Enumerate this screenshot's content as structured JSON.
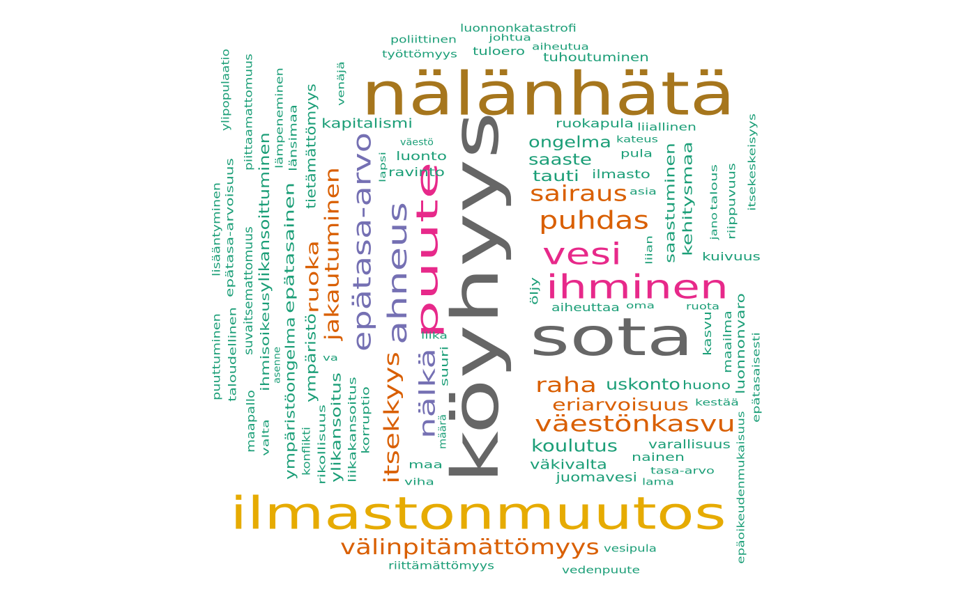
{
  "palette": {
    "green": "#1b9e77",
    "orange": "#d95f02",
    "purple": "#7570b3",
    "pink": "#e7298a",
    "olive": "#a6761d",
    "gold": "#e6ab02",
    "gray": "#666666"
  },
  "words": [
    {
      "id": "nalanhata",
      "text": "nälänhätä",
      "color": "olive"
    },
    {
      "id": "koyhyys",
      "text": "köyhyys",
      "color": "gray"
    },
    {
      "id": "sota",
      "text": "sota",
      "color": "gray"
    },
    {
      "id": "ilmastonmuutos",
      "text": "ilmastonmuutos",
      "color": "gold"
    },
    {
      "id": "ihminen",
      "text": "ihminen",
      "color": "pink"
    },
    {
      "id": "vesi",
      "text": "vesi",
      "color": "pink"
    },
    {
      "id": "puute",
      "text": "puute",
      "color": "pink"
    },
    {
      "id": "ahneus",
      "text": "ahneus",
      "color": "purple"
    },
    {
      "id": "epatasa-arvo",
      "text": "epätasa-arvo",
      "color": "purple"
    },
    {
      "id": "nalka",
      "text": "nälkä",
      "color": "purple"
    },
    {
      "id": "valinpitamattomyys",
      "text": "välinpitämättömyys",
      "color": "orange"
    },
    {
      "id": "vaestonkasvu",
      "text": "väestönkasvu",
      "color": "orange"
    },
    {
      "id": "puhdas",
      "text": "puhdas",
      "color": "orange"
    },
    {
      "id": "sairaus",
      "text": "sairaus",
      "color": "orange"
    },
    {
      "id": "raha",
      "text": "raha",
      "color": "orange"
    },
    {
      "id": "eriarvoisuus",
      "text": "eriarvoisuus",
      "color": "orange"
    },
    {
      "id": "itsekkyys",
      "text": "itsekkyys",
      "color": "orange"
    },
    {
      "id": "jakautuminen",
      "text": "jakautuminen",
      "color": "orange"
    },
    {
      "id": "ruoka",
      "text": "ruoka",
      "color": "orange"
    },
    {
      "id": "koulutus",
      "text": "koulutus",
      "color": "green"
    },
    {
      "id": "uskonto",
      "text": "uskonto",
      "color": "green"
    },
    {
      "id": "vakivalta",
      "text": "väkivalta",
      "color": "green"
    },
    {
      "id": "juomavesi",
      "text": "juomavesi",
      "color": "green"
    },
    {
      "id": "ongelma",
      "text": "ongelma",
      "color": "green"
    },
    {
      "id": "saaste",
      "text": "saaste",
      "color": "green"
    },
    {
      "id": "tauti",
      "text": "tauti",
      "color": "green"
    },
    {
      "id": "kapitalismi",
      "text": "kapitalismi",
      "color": "green"
    },
    {
      "id": "ravinto",
      "text": "ravinto",
      "color": "green"
    },
    {
      "id": "luonto",
      "text": "luonto",
      "color": "green"
    },
    {
      "id": "vaesto",
      "text": "väestö",
      "color": "green"
    },
    {
      "id": "ruokapula",
      "text": "ruokapula",
      "color": "green"
    },
    {
      "id": "liiallinen",
      "text": "liiallinen",
      "color": "green"
    },
    {
      "id": "kateus",
      "text": "kateus",
      "color": "green"
    },
    {
      "id": "pula",
      "text": "pula",
      "color": "green"
    },
    {
      "id": "ilmasto",
      "text": "ilmasto",
      "color": "green"
    },
    {
      "id": "asia",
      "text": "asia",
      "color": "green"
    },
    {
      "id": "tuhoutuminen",
      "text": "tuhoutuminen",
      "color": "green"
    },
    {
      "id": "aiheutua",
      "text": "aiheutua",
      "color": "green"
    },
    {
      "id": "johtua",
      "text": "johtua",
      "color": "green"
    },
    {
      "id": "tuloero",
      "text": "tuloero",
      "color": "green"
    },
    {
      "id": "luonnonkatastrofi",
      "text": "luonnonkatastrofi",
      "color": "green"
    },
    {
      "id": "poliittinen",
      "text": "poliittinen",
      "color": "green"
    },
    {
      "id": "tyottomyys",
      "text": "työttömyys",
      "color": "green"
    },
    {
      "id": "kuivuus",
      "text": "kuivuus",
      "color": "green"
    },
    {
      "id": "aiheuttaa",
      "text": "aiheuttaa",
      "color": "green"
    },
    {
      "id": "oma",
      "text": "oma",
      "color": "green"
    },
    {
      "id": "ruota",
      "text": "ruota",
      "color": "green"
    },
    {
      "id": "huono",
      "text": "huono",
      "color": "green"
    },
    {
      "id": "kestaa",
      "text": "kestää",
      "color": "green"
    },
    {
      "id": "varallisuus",
      "text": "varallisuus",
      "color": "green"
    },
    {
      "id": "nainen",
      "text": "nainen",
      "color": "green"
    },
    {
      "id": "tasa-arvo",
      "text": "tasa-arvo",
      "color": "green"
    },
    {
      "id": "lama",
      "text": "lama",
      "color": "green"
    },
    {
      "id": "vesipula",
      "text": "vesipula",
      "color": "green"
    },
    {
      "id": "vedenpuute",
      "text": "vedenpuute",
      "color": "green"
    },
    {
      "id": "riittamattomyys",
      "text": "riittämättömyys",
      "color": "green"
    },
    {
      "id": "maa",
      "text": "maa",
      "color": "green"
    },
    {
      "id": "viha",
      "text": "viha",
      "color": "green"
    },
    {
      "id": "liika",
      "text": "liika",
      "color": "green"
    },
    {
      "id": "va",
      "text": "va",
      "color": "green"
    },
    {
      "id": "saastuminen",
      "text": "saastuminen",
      "color": "green"
    },
    {
      "id": "kehitysmaa",
      "text": "kehitysmaa",
      "color": "green"
    },
    {
      "id": "jano",
      "text": "jano",
      "color": "green"
    },
    {
      "id": "talous",
      "text": "talous",
      "color": "green"
    },
    {
      "id": "riippuvuus",
      "text": "riippuvuus",
      "color": "green"
    },
    {
      "id": "itsekeskeisyys",
      "text": "itsekeskeisyys",
      "color": "green"
    },
    {
      "id": "liian",
      "text": "liian",
      "color": "green"
    },
    {
      "id": "oljy",
      "text": "öljy",
      "color": "green"
    },
    {
      "id": "kasvu",
      "text": "kasvu",
      "color": "green"
    },
    {
      "id": "maailma",
      "text": "maailma",
      "color": "green"
    },
    {
      "id": "luonnonvaro",
      "text": "luonnonvaro",
      "color": "green"
    },
    {
      "id": "epatasaisesti",
      "text": "epätasaisesti",
      "color": "green"
    },
    {
      "id": "epaoikeudenmukaisuus",
      "text": "epäoikeudenmukaisuus",
      "color": "green"
    },
    {
      "id": "suuri",
      "text": "suuri",
      "color": "green"
    },
    {
      "id": "maara",
      "text": "määrä",
      "color": "green"
    },
    {
      "id": "korruptio",
      "text": "korruptio",
      "color": "green"
    },
    {
      "id": "liikakansoitus",
      "text": "liikakansoitus",
      "color": "green"
    },
    {
      "id": "ylikansoitus",
      "text": "ylikansoitus",
      "color": "green"
    },
    {
      "id": "rikollisuus",
      "text": "rikollisuus",
      "color": "green"
    },
    {
      "id": "ymparisto",
      "text": "ympäristö",
      "color": "green"
    },
    {
      "id": "tietamattomyys",
      "text": "tietämättömyys",
      "color": "green"
    },
    {
      "id": "ymparistoongelma",
      "text": "ympäristöongelma",
      "color": "green"
    },
    {
      "id": "epatasainen",
      "text": "epätasainen",
      "color": "green"
    },
    {
      "id": "konflikti",
      "text": "konflikti",
      "color": "green"
    },
    {
      "id": "lansimaa",
      "text": "länsimaa",
      "color": "green"
    },
    {
      "id": "lampeneminen",
      "text": "lämpeneminen",
      "color": "green"
    },
    {
      "id": "ylikansoittuminen",
      "text": "ylikansoittuminen",
      "color": "green"
    },
    {
      "id": "ihmisoikeus",
      "text": "ihmisoikeus",
      "color": "green"
    },
    {
      "id": "asenne",
      "text": "asenne",
      "color": "green"
    },
    {
      "id": "valta",
      "text": "valta",
      "color": "green"
    },
    {
      "id": "suvaitsemattomuus",
      "text": "suvaitsemattomuus",
      "color": "green"
    },
    {
      "id": "maapallo",
      "text": "maapallo",
      "color": "green"
    },
    {
      "id": "piittaamattomuus",
      "text": "piittaamattomuus",
      "color": "green"
    },
    {
      "id": "ylipopulaatio",
      "text": "ylipopulaatio",
      "color": "green"
    },
    {
      "id": "epatasa-arvoisuus",
      "text": "epätasa-arvoisuus",
      "color": "green"
    },
    {
      "id": "taloudellinen",
      "text": "taloudellinen",
      "color": "green"
    },
    {
      "id": "lisaantyminen",
      "text": "lisääntyminen",
      "color": "green"
    },
    {
      "id": "puuttuminen",
      "text": "puuttuminen",
      "color": "green"
    },
    {
      "id": "venaja",
      "text": "venäjä",
      "color": "green"
    },
    {
      "id": "lapsi",
      "text": "lapsi",
      "color": "green"
    }
  ]
}
